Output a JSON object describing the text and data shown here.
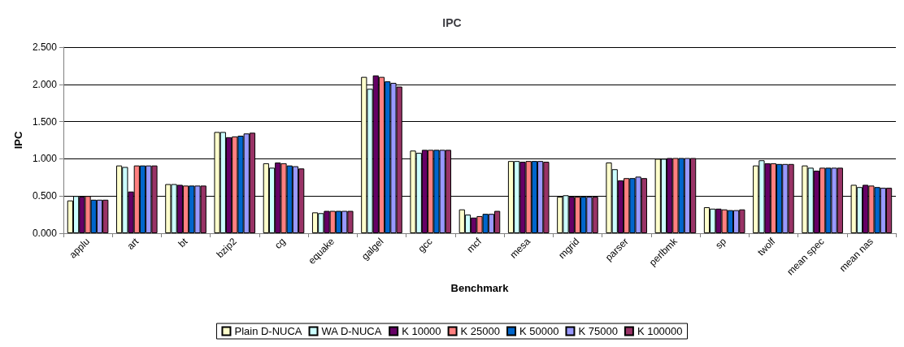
{
  "chart_data": {
    "type": "bar",
    "title": "IPC",
    "xlabel": "Benchmark",
    "ylabel": "IPC",
    "categories": [
      "applu",
      "art",
      "bt",
      "bzip2",
      "cg",
      "equake",
      "galgel",
      "gcc",
      "mcf",
      "mesa",
      "mgrid",
      "parser",
      "perlbmk",
      "sp",
      "twolf",
      "mean spec",
      "mean nas"
    ],
    "series": [
      {
        "name": "Plain D-NUCA",
        "color": "#ffffcc",
        "values": [
          0.44,
          0.91,
          0.66,
          1.36,
          0.94,
          0.28,
          2.1,
          1.11,
          0.32,
          0.97,
          0.49,
          0.95,
          1.0,
          0.35,
          0.91,
          0.91,
          0.65
        ]
      },
      {
        "name": "WA D-NUCA",
        "color": "#ccffff",
        "values": [
          0.5,
          0.89,
          0.66,
          1.36,
          0.88,
          0.27,
          1.94,
          1.08,
          0.25,
          0.97,
          0.51,
          0.86,
          1.0,
          0.33,
          0.98,
          0.88,
          0.62
        ]
      },
      {
        "name": "K 10000",
        "color": "#660066",
        "values": [
          0.49,
          0.56,
          0.65,
          1.29,
          0.95,
          0.3,
          2.12,
          1.12,
          0.21,
          0.96,
          0.49,
          0.71,
          1.01,
          0.33,
          0.94,
          0.84,
          0.65
        ]
      },
      {
        "name": "K 25000",
        "color": "#ff8080",
        "values": [
          0.5,
          0.91,
          0.64,
          1.3,
          0.94,
          0.3,
          2.1,
          1.12,
          0.23,
          0.97,
          0.49,
          0.74,
          1.01,
          0.32,
          0.94,
          0.88,
          0.64
        ]
      },
      {
        "name": "K 50000",
        "color": "#0066cc",
        "values": [
          0.45,
          0.91,
          0.64,
          1.31,
          0.91,
          0.3,
          2.04,
          1.12,
          0.26,
          0.97,
          0.49,
          0.74,
          1.01,
          0.31,
          0.93,
          0.88,
          0.62
        ]
      },
      {
        "name": "K 75000",
        "color": "#9999ff",
        "values": [
          0.45,
          0.91,
          0.64,
          1.34,
          0.9,
          0.3,
          2.02,
          1.12,
          0.26,
          0.97,
          0.49,
          0.76,
          1.01,
          0.31,
          0.93,
          0.88,
          0.61
        ]
      },
      {
        "name": "K 100000",
        "color": "#993366",
        "values": [
          0.45,
          0.91,
          0.64,
          1.35,
          0.87,
          0.3,
          1.97,
          1.12,
          0.3,
          0.96,
          0.49,
          0.74,
          1.01,
          0.32,
          0.93,
          0.88,
          0.61
        ]
      }
    ],
    "ylim": [
      0,
      2.5
    ],
    "yticks": [
      {
        "value": 0,
        "label": "0.000"
      },
      {
        "value": 0.5,
        "label": "0.500"
      },
      {
        "value": 1,
        "label": "1.000"
      },
      {
        "value": 1.5,
        "label": "1.500"
      },
      {
        "value": 2,
        "label": "2.000"
      },
      {
        "value": 2.5,
        "label": "2.500"
      }
    ],
    "grid": "y",
    "legend": "bottom"
  }
}
